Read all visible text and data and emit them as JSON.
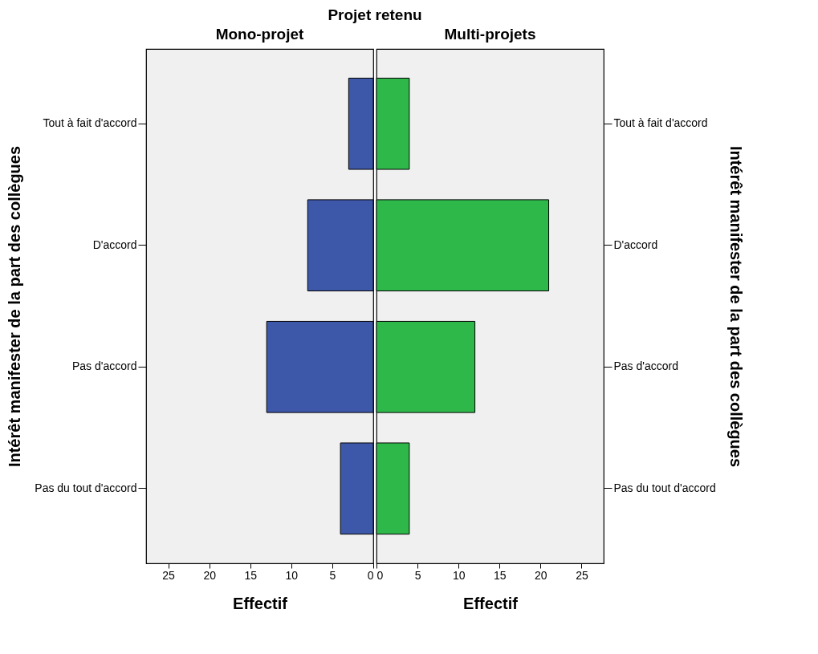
{
  "chart_data": [
    {
      "type": "bar",
      "orientation": "horizontal",
      "title": "Projet retenu",
      "subtitle": "Mono-projet",
      "xlabel": "Effectif",
      "ylabel": "Intérêt manifester de la part des collègues",
      "categories": [
        "Tout à fait d'accord",
        "D'accord",
        "Pas d'accord",
        "Pas du tout d'accord"
      ],
      "values": [
        3,
        8,
        13,
        4
      ],
      "color": "#3d57a9",
      "xlim": [
        27.7,
        0
      ],
      "xticks": [
        25,
        20,
        15,
        10,
        5,
        0
      ]
    },
    {
      "type": "bar",
      "orientation": "horizontal",
      "subtitle": "Multi-projets",
      "xlabel": "Effectif",
      "ylabel": "Intérêt manifester de la part des collègues",
      "categories": [
        "Tout à fait d'accord",
        "D'accord",
        "Pas d'accord",
        "Pas du tout d'accord"
      ],
      "values": [
        4,
        21,
        12,
        4
      ],
      "color": "#2fb84a",
      "xlim": [
        0,
        27.7
      ],
      "xticks": [
        0,
        5,
        10,
        15,
        20,
        25
      ]
    }
  ]
}
